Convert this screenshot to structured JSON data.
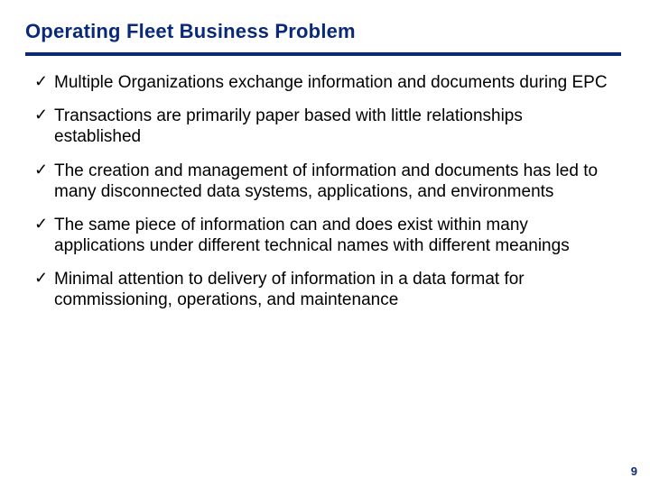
{
  "colors": {
    "title": "#0a2a78",
    "rule": "#0a2a78",
    "check": "#000000",
    "text": "#000000",
    "pagenum": "#0a2a78",
    "background": "#ffffff"
  },
  "title": "Operating Fleet Business Problem",
  "bullets": [
    "Multiple Organizations exchange information and documents during EPC",
    "Transactions are primarily paper based with little relationships established",
    "The creation and management of information and documents has led to many disconnected data systems, applications, and environments",
    "The same piece of information can and does exist within many applications under different technical names with different meanings",
    "Minimal attention to delivery of information in a data format  for commissioning, operations, and maintenance"
  ],
  "check_glyph": "✓",
  "page_number": "9"
}
